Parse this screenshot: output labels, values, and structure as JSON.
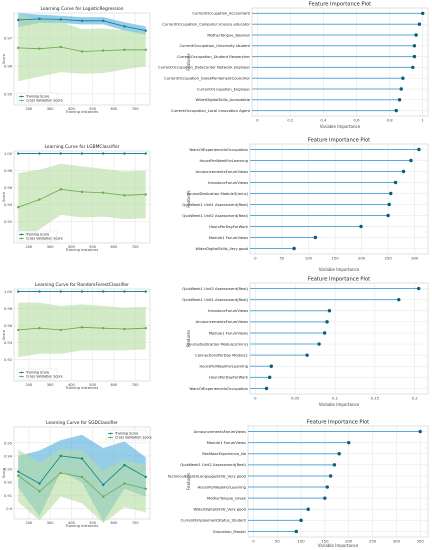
{
  "colors": {
    "train": "#0b7f8c",
    "train_band": "#3fa6d9",
    "cv": "#6aa84f",
    "cv_band": "#b6dca0",
    "lollipop_line": "#5aa8d8",
    "lollipop_dot": "#0b5d78",
    "grid": "#e6e6e6",
    "axis": "#444444"
  },
  "chart_data": [
    {
      "type": "line",
      "title": "Learning Curve for LogisticRegression",
      "xlabel": "Training Instances",
      "ylabel": "Score",
      "x": [
        150,
        250,
        350,
        450,
        550,
        650,
        750
      ],
      "xticks": [
        200,
        300,
        400,
        500,
        600,
        700
      ],
      "yticks": [
        0.95,
        0.96,
        0.97
      ],
      "ylim": [
        0.946,
        0.979
      ],
      "grid": true,
      "legend_position": "bottom-left",
      "series": [
        {
          "name": "Training Score",
          "role": "train",
          "values": [
            0.9765,
            0.9769,
            0.9767,
            0.9762,
            0.9762,
            0.9742,
            0.9727
          ],
          "band": [
            0.0025,
            0.0015,
            0.0013,
            0.0013,
            0.0013,
            0.0015,
            0.0015
          ]
        },
        {
          "name": "Cross Validation Score",
          "role": "cv",
          "values": [
            0.9665,
            0.9662,
            0.9668,
            0.9652,
            0.9655,
            0.9658,
            0.9658
          ],
          "band": [
            0.012,
            0.01,
            0.009,
            0.008,
            0.008,
            0.007,
            0.006
          ]
        }
      ]
    },
    {
      "type": "line",
      "title": "Learning Curve for LGBMClassifier",
      "xlabel": "Training Instances",
      "ylabel": "Score",
      "x": [
        150,
        250,
        350,
        450,
        550,
        650,
        750
      ],
      "xticks": [
        200,
        300,
        400,
        500,
        600,
        700
      ],
      "yticks": [
        0.92,
        0.94,
        0.96,
        0.98,
        1.0
      ],
      "ylim": [
        0.895,
        1.003
      ],
      "grid": true,
      "legend_position": "bottom-left",
      "series": [
        {
          "name": "Training Score",
          "role": "train",
          "values": [
            1.0,
            1.0,
            1.0,
            1.0,
            1.0,
            1.0,
            1.0
          ],
          "band": [
            0.0005,
            0.0005,
            0.0005,
            0.0005,
            0.0005,
            0.0005,
            0.0005
          ]
        },
        {
          "name": "Cross Validation Score",
          "role": "cv",
          "values": [
            0.937,
            0.946,
            0.958,
            0.955,
            0.954,
            0.951,
            0.952
          ],
          "band": [
            0.04,
            0.035,
            0.03,
            0.03,
            0.028,
            0.028,
            0.028
          ]
        }
      ]
    },
    {
      "type": "line",
      "title": "Learning Curve for RandomForestClassifier",
      "xlabel": "Training Instances",
      "ylabel": "Score",
      "x": [
        150,
        250,
        350,
        450,
        550,
        650,
        750
      ],
      "xticks": [
        200,
        300,
        400,
        500,
        600,
        700
      ],
      "yticks": [
        0.92,
        0.94,
        0.96,
        0.98,
        1.0
      ],
      "ylim": [
        0.895,
        1.003
      ],
      "grid": true,
      "legend_position": "bottom-left",
      "series": [
        {
          "name": "Training Score",
          "role": "train",
          "values": [
            1.0,
            1.0,
            1.0,
            1.0,
            1.0,
            1.0,
            1.0
          ],
          "band": [
            0.0005,
            0.0005,
            0.0005,
            0.0005,
            0.0005,
            0.0005,
            0.0005
          ]
        },
        {
          "name": "Cross Validation Score",
          "role": "cv",
          "values": [
            0.955,
            0.957,
            0.955,
            0.958,
            0.957,
            0.956,
            0.957
          ],
          "band": [
            0.032,
            0.03,
            0.028,
            0.027,
            0.026,
            0.025,
            0.025
          ]
        }
      ]
    },
    {
      "type": "line",
      "title": "Learning Curve for SGDClassifier",
      "xlabel": "Training Instances",
      "ylabel": "Score",
      "x": [
        150,
        250,
        350,
        450,
        550,
        650,
        750
      ],
      "xticks": [
        200,
        300,
        400,
        500,
        600,
        700
      ],
      "yticks": [
        0.9,
        0.91,
        0.92,
        0.93,
        0.94,
        0.95
      ],
      "ylim": [
        0.892,
        0.962
      ],
      "grid": true,
      "legend_position": "top-right",
      "series": [
        {
          "name": "Training Score",
          "role": "train",
          "values": [
            0.928,
            0.919,
            0.94,
            0.938,
            0.918,
            0.933,
            0.924
          ],
          "band": [
            0.012,
            0.025,
            0.012,
            0.018,
            0.028,
            0.018,
            0.015
          ]
        },
        {
          "name": "Cross Validation Score",
          "role": "cv",
          "values": [
            0.925,
            0.913,
            0.927,
            0.924,
            0.909,
            0.919,
            0.915
          ],
          "band": [
            0.02,
            0.022,
            0.018,
            0.02,
            0.02,
            0.018,
            0.018
          ]
        }
      ]
    },
    {
      "type": "lollipop",
      "title": "Feature Importance Plot",
      "xlabel": "Variable Importance",
      "ylabel": "Features",
      "xlim": [
        0,
        1.0
      ],
      "xticks": [
        0.0,
        0.2,
        0.4,
        0.6,
        0.8,
        1.0
      ],
      "grid": true,
      "categories": [
        "CurrentOccupation_Accountant",
        "CurrentOccupation_Computer science educator",
        "MotherTongue_Bosnian",
        "CurrentOccupation_University student",
        "CurrentOccupation_Student Researcher",
        "CurrentOccupation_DataCenter Network engineer",
        "CurrentOccupation_GreekParliamentCouncillor",
        "CurrentOccupation_Engineer",
        "WiderDigitalSkills_Acceptable",
        "CurrentOccupation_Local Innovation Agent"
      ],
      "values": [
        1.0,
        0.98,
        0.96,
        0.95,
        0.95,
        0.94,
        0.88,
        0.87,
        0.86,
        0.84
      ]
    },
    {
      "type": "lollipop",
      "title": "Feature Importance Plot",
      "xlabel": "Variable Importance",
      "ylabel": "Features",
      "xlim": [
        0,
        315
      ],
      "xticks": [
        0,
        50,
        100,
        150,
        200,
        250,
        300
      ],
      "grid": true,
      "categories": [
        "YearsOfExperienceInOccupation",
        "HoursPerWeekForLearning",
        "AnnouncementsForumViews",
        "IntroduceForumViews",
        "CourseDedication Module3(mins)",
        "QuizWeek1 Unit1 Assessment(Real)",
        "QuizWeek1 Unit2 Assessment(Real)",
        "HoursPerDayForWork",
        "Module1 ForumViews",
        "WiderDigitalSkills_Very good"
      ],
      "values": [
        308,
        293,
        279,
        264,
        255,
        252,
        250,
        199,
        113,
        73
      ]
    },
    {
      "type": "lollipop",
      "title": "Feature Importance Plot",
      "xlabel": "Variable Importance",
      "ylabel": "Features",
      "xlim": [
        0,
        0.21
      ],
      "xticks": [
        0.0,
        0.05,
        0.1,
        0.15,
        0.2
      ],
      "grid": true,
      "categories": [
        "QuizWeek1 Unit2 Assessment(Real)",
        "QuizWeek1 Unit1 Assessment(Real)",
        "IntroduceForumViews",
        "AnnouncementsForumViews",
        "Module1 ForumViews",
        "CourseDedication Module1(mins)",
        "ConnectionsPerDay Module1",
        "HoursPerWeekForLearning",
        "HoursPerDayForWork",
        "YearsOfExperienceInOccupation"
      ],
      "values": [
        0.205,
        0.18,
        0.093,
        0.09,
        0.087,
        0.08,
        0.065,
        0.02,
        0.018,
        0.014
      ]
    },
    {
      "type": "lollipop",
      "title": "Feature Importance Plot",
      "xlabel": "Variable Importance",
      "ylabel": "Features",
      "xlim": [
        0,
        355
      ],
      "xticks": [
        0,
        50,
        100,
        150,
        200,
        250,
        300,
        350
      ],
      "grid": true,
      "categories": [
        "AnnouncementsForumViews",
        "Module1 ForumViews",
        "ResMoocExperience_No",
        "QuizWeek1 Unit2 Assessment(Real)",
        "TechnicalEnglishLanguageSkills_Very good",
        "HoursPerWeekForLearning",
        "MotherTongue_Greek",
        "WiderDigitalSkills_Very good",
        "CurrentEmploymentStatus_Student",
        "Education_Master"
      ],
      "values": [
        350,
        200,
        180,
        170,
        162,
        155,
        150,
        115,
        100,
        90
      ]
    }
  ]
}
